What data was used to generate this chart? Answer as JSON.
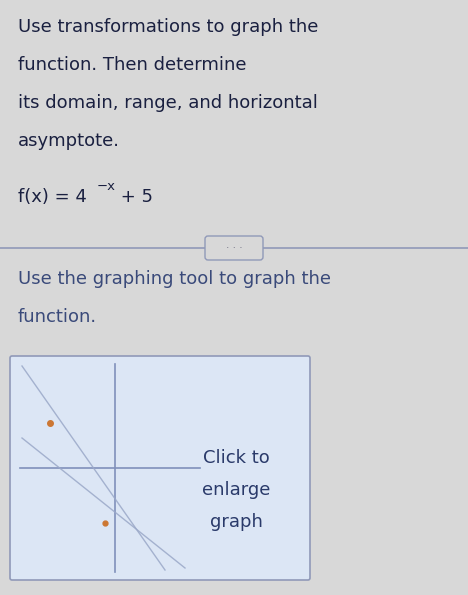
{
  "background_color": "#d8d8d8",
  "title_text_line1": "Use transformations to graph the",
  "title_text_line2": "function. Then determine",
  "title_text_line3": "its domain, range, and horizontal",
  "title_text_line4": "asymptote.",
  "divider_color": "#9099b8",
  "second_text_line1": "Use the graphing tool to graph the",
  "second_text_line2": "function.",
  "text_color_blue": "#3a4a7a",
  "text_color_black": "#1a2040",
  "graph_bg": "#dce6f5",
  "graph_border_color": "#9099b8",
  "graph_axis_color": "#8090bb",
  "graph_line_color": "#9aa8c8",
  "graph_dot_color": "#cc7733",
  "click_text_color": "#2a3a6a",
  "font_size_main": 13.0,
  "font_size_func": 13.0,
  "font_size_super": 9.5
}
